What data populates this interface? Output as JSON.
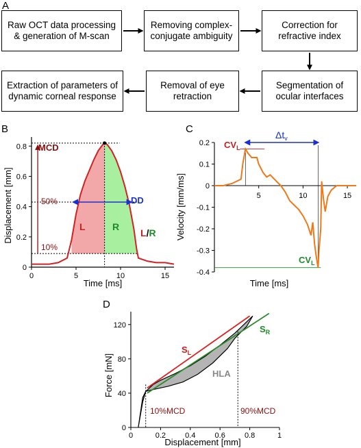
{
  "panels": {
    "a": {
      "letter": "A",
      "steps": [
        "Raw OCT data processing & generation of M-scan",
        "Removing complex-conjugate ambiguity",
        "Correction for refractive index",
        "Segmentation of ocular interfaces",
        "Removal of eye retraction",
        "Extraction of parameters of dynamic corneal response"
      ]
    },
    "b": {
      "letter": "B",
      "xlabel": "Time [ms]",
      "ylabel": "Displacement [mm]",
      "xticks": [
        "0",
        "5",
        "10",
        "15"
      ],
      "yticks": [
        "0",
        "0.2",
        "0.4",
        "0.6",
        "0.8"
      ],
      "labels": {
        "mcd": "MCD",
        "dd": "DD",
        "p50": "50%",
        "p10": "10%",
        "left": "L",
        "right": "R",
        "ratio_l": "L",
        "ratio_slash": "/",
        "ratio_r": "R"
      },
      "colors": {
        "curve": "#d32020",
        "left_fill": "#f2a8a8",
        "right_fill": "#a8f0a0",
        "dd_arrow": "#1a30d0",
        "label_red": "#cc1f1f",
        "label_green": "#1e8a2a",
        "label_dark_red": "#8a1010"
      },
      "chart_data": {
        "type": "area",
        "x": [
          0,
          1,
          2,
          3,
          4,
          4.5,
          5,
          5.5,
          6,
          6.5,
          7,
          7.5,
          8,
          8.2,
          8.5,
          9,
          9.5,
          10,
          10.5,
          11,
          11.5,
          11.8,
          12,
          13,
          14,
          15,
          16
        ],
        "y": [
          0.02,
          0.02,
          0.02,
          0.03,
          0.06,
          0.18,
          0.35,
          0.48,
          0.57,
          0.64,
          0.71,
          0.77,
          0.81,
          0.82,
          0.81,
          0.77,
          0.71,
          0.63,
          0.53,
          0.41,
          0.25,
          0.12,
          0.06,
          0.04,
          0.03,
          0.03,
          0.02
        ],
        "xlim": [
          0,
          16
        ],
        "ylim": [
          0,
          0.86
        ],
        "peak": {
          "x": 8.2,
          "y": 0.82
        },
        "half_width": {
          "y": 0.43,
          "x_start": 4.7,
          "x_end": 11.2
        },
        "ten_percent_level": 0.09
      }
    },
    "c": {
      "letter": "C",
      "xlabel": "Time [ms]",
      "ylabel": "Velocity [mm/ms]",
      "xticks": [
        "5",
        "10",
        "15"
      ],
      "yticks": [
        "0.2",
        "0.1",
        "0",
        "-0.1",
        "-0.2",
        "-0.3",
        "-0.4"
      ],
      "labels": {
        "cv": "CV",
        "cv_sub": "L",
        "delta": "Δt",
        "delta_sub": "v"
      },
      "colors": {
        "curve": "#f07818",
        "label_red": "#cc1f1f",
        "label_green": "#1e8a2a",
        "arrow": "#1a30d0"
      },
      "chart_data": {
        "type": "line",
        "x": [
          0,
          1,
          2,
          3,
          3.2,
          3.5,
          3.8,
          4.2,
          4.8,
          5.0,
          5.5,
          5.9,
          6.3,
          7,
          7.5,
          8,
          8.5,
          9,
          9.5,
          10,
          10.5,
          10.9,
          11.1,
          11.3,
          11.5,
          11.7,
          11.8,
          12.0,
          12.1,
          12.3,
          12.5,
          12.8,
          13.2,
          13.8,
          14.5,
          15,
          16
        ],
        "y": [
          0.0,
          0.0,
          0.01,
          0.03,
          0.1,
          0.17,
          0.15,
          0.13,
          0.13,
          0.1,
          0.06,
          0.04,
          0.05,
          0.02,
          0.0,
          -0.03,
          -0.07,
          -0.09,
          -0.11,
          -0.14,
          -0.18,
          -0.23,
          -0.17,
          -0.27,
          -0.33,
          -0.38,
          -0.3,
          -0.2,
          0.02,
          -0.06,
          -0.12,
          -0.05,
          -0.02,
          0.0,
          0.0,
          0.0,
          0.0
        ],
        "xlim": [
          0,
          16
        ],
        "ylim": [
          -0.4,
          0.2
        ],
        "cv_max": {
          "x": 3.5,
          "y": 0.17
        },
        "cv_min": {
          "x": 11.7,
          "y": -0.38
        }
      }
    },
    "d": {
      "letter": "D",
      "xlabel": "Displacement [mm]",
      "ylabel": "Force [mN]",
      "xticks": [
        "0",
        "0.2",
        "0.4",
        "0.6",
        "0.8",
        "1"
      ],
      "yticks": [
        "0",
        "40",
        "80",
        "120"
      ],
      "labels": {
        "sl": "S",
        "sl_sub": "L",
        "sr": "S",
        "sr_sub": "R",
        "hla": "HLA",
        "p10": "10%MCD",
        "p90": "90%MCD"
      },
      "colors": {
        "loop_fill": "#b4b4b4",
        "sl_line": "#dd1f1f",
        "sr_line": "#2a8a2a",
        "label_red": "#cc1f1f",
        "label_green": "#1e8a2a",
        "hla_label": "#888888",
        "marker_label": "#8a1010"
      },
      "chart_data": {
        "type": "area",
        "loading_x": [
          0.05,
          0.06,
          0.08,
          0.1,
          0.15,
          0.2,
          0.3,
          0.4,
          0.5,
          0.6,
          0.7,
          0.76,
          0.82
        ],
        "loading_y": [
          0,
          10,
          30,
          42,
          50,
          55,
          63,
          72,
          83,
          96,
          110,
          120,
          130
        ],
        "unloading_x": [
          0.82,
          0.78,
          0.7,
          0.65,
          0.55,
          0.45,
          0.35,
          0.25,
          0.17,
          0.12,
          0.1,
          0.08,
          0.05
        ],
        "unloading_y": [
          130,
          118,
          104,
          92,
          75,
          62,
          53,
          48,
          45,
          43,
          42,
          35,
          0
        ],
        "sl_line": {
          "x": [
            0.11,
            0.8
          ],
          "y": [
            46,
            130
          ]
        },
        "sr_line": {
          "x": [
            0.11,
            0.93
          ],
          "y": [
            40,
            133
          ]
        },
        "p10_x": 0.1,
        "p90_x": 0.72,
        "xlim": [
          0,
          1
        ],
        "ylim": [
          0,
          135
        ]
      }
    }
  }
}
